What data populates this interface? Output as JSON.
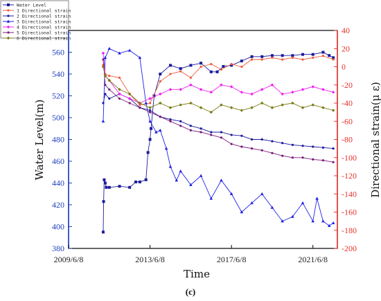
{
  "chart_data": {
    "type": "line",
    "xlabel": "Time",
    "ylabel_left": "Water Level(m)",
    "ylabel_right": "Directional strain(μ ε)",
    "caption": "(c)",
    "x_ticks": [
      "2009/6/8",
      "2013/6/8",
      "2017/6/8",
      "2021/6/8"
    ],
    "x_tick_positions": [
      0,
      4,
      8,
      12
    ],
    "xlim": [
      0,
      13.2
    ],
    "ylim_left": [
      380,
      580
    ],
    "y_ticks_left": [
      "380",
      "400",
      "420",
      "440",
      "460",
      "480",
      "500",
      "520",
      "540",
      "560"
    ],
    "ylim_right": [
      -200,
      40
    ],
    "y_ticks_right": [
      "-200",
      "-180",
      "-160",
      "-140",
      "-120",
      "-100",
      "-80",
      "-60",
      "-40",
      "-20",
      "0",
      "20",
      "40"
    ],
    "grid": false,
    "legend_position": "top-left outside",
    "colors": {
      "left_axis": "#1f3fbf",
      "right_axis": "#e8322c"
    },
    "series": [
      {
        "name": "Water Level",
        "axis": "left",
        "color": "#1a1a9c",
        "marker": "square",
        "x": [
          1.7,
          1.72,
          1.75,
          1.8,
          1.85,
          2.0,
          2.5,
          3.0,
          3.3,
          3.5,
          3.8,
          3.9,
          4.0,
          4.05,
          4.2,
          4.5,
          5.0,
          5.5,
          6.0,
          6.5,
          7.0,
          7.3,
          7.6,
          8.0,
          8.5,
          9.0,
          9.5,
          10.0,
          10.5,
          11.0,
          11.5,
          12.0,
          12.5,
          12.8,
          13.0
        ],
        "y": [
          395,
          423,
          443,
          440,
          436,
          436,
          437,
          436,
          441,
          441,
          443,
          468,
          480,
          490,
          520,
          540,
          548,
          545,
          548,
          550,
          542,
          542,
          547,
          548,
          552,
          556,
          556,
          557,
          557,
          557,
          558,
          558,
          560,
          557,
          555
        ]
      },
      {
        "name": "1 Directional strain",
        "axis": "right",
        "color": "#f05a3c",
        "marker": "dot",
        "x": [
          1.7,
          1.8,
          2.0,
          2.5,
          3.0,
          3.5,
          4.0,
          4.5,
          5.0,
          5.5,
          6.0,
          6.5,
          7.0,
          7.5,
          8.0,
          8.5,
          9.0,
          9.5,
          10.0,
          10.5,
          11.0,
          11.5,
          12.0,
          12.5,
          13.0
        ],
        "y": [
          2,
          -8,
          -10,
          -12,
          -30,
          -42,
          -40,
          -16,
          -8,
          -5,
          -12,
          0,
          3,
          -3,
          3,
          0,
          8,
          8,
          10,
          8,
          10,
          8,
          10,
          12,
          8
        ]
      },
      {
        "name": "2 Directional strain",
        "axis": "right",
        "color": "#1a1a9c",
        "marker": "dot",
        "x": [
          1.7,
          1.8,
          2.0,
          2.5,
          3.0,
          3.5,
          4.0,
          4.5,
          5.0,
          5.5,
          6.0,
          6.5,
          7.0,
          7.5,
          8.0,
          8.5,
          9.0,
          9.5,
          10.0,
          10.5,
          11.0,
          11.5,
          12.0,
          12.5,
          13.0
        ],
        "y": [
          -40,
          -30,
          -35,
          -30,
          -35,
          -45,
          -48,
          -55,
          -58,
          -60,
          -65,
          -68,
          -72,
          -72,
          -75,
          -76,
          -80,
          -80,
          -82,
          -84,
          -86,
          -87,
          -88,
          -89,
          -90
        ]
      },
      {
        "name": "3 Directional strain",
        "axis": "right",
        "color": "#2020e8",
        "marker": "triangle",
        "x": [
          1.7,
          1.8,
          2.0,
          2.5,
          3.0,
          3.5,
          3.8,
          4.0,
          4.3,
          4.5,
          4.8,
          5.0,
          5.3,
          5.5,
          6.0,
          6.5,
          7.0,
          7.5,
          8.0,
          8.5,
          9.0,
          9.5,
          10.0,
          10.5,
          11.0,
          11.5,
          12.0,
          12.2,
          12.5,
          12.8,
          13.0
        ],
        "y": [
          -60,
          10,
          20,
          15,
          18,
          10,
          -40,
          -60,
          -72,
          -70,
          -90,
          -110,
          -125,
          -115,
          -130,
          -120,
          -145,
          -125,
          -140,
          -160,
          -150,
          -140,
          -155,
          -170,
          -165,
          -150,
          -170,
          -145,
          -170,
          -175,
          -172
        ]
      },
      {
        "name": "4 Directional strain",
        "axis": "right",
        "color": "#f022f0",
        "marker": "diamond",
        "x": [
          1.7,
          1.8,
          2.0,
          2.5,
          3.0,
          3.5,
          4.0,
          4.5,
          5.0,
          5.5,
          6.0,
          6.5,
          7.0,
          7.5,
          8.0,
          8.5,
          9.0,
          9.5,
          10.0,
          10.5,
          11.0,
          11.5,
          12.0,
          12.5,
          13.0
        ],
        "y": [
          15,
          -10,
          -15,
          -30,
          -35,
          -40,
          -35,
          -30,
          -25,
          -25,
          -20,
          -25,
          -28,
          -20,
          -22,
          -28,
          -30,
          -25,
          -20,
          -30,
          -28,
          -25,
          -22,
          -25,
          -28
        ]
      },
      {
        "name": "5 Directional strain",
        "axis": "right",
        "color": "#7a1a7a",
        "marker": "dot",
        "x": [
          1.7,
          1.8,
          2.0,
          2.5,
          3.0,
          3.5,
          4.0,
          4.5,
          5.0,
          5.5,
          6.0,
          6.5,
          7.0,
          7.5,
          8.0,
          8.5,
          9.0,
          9.5,
          10.0,
          10.5,
          11.0,
          11.5,
          12.0,
          12.5,
          13.0
        ],
        "y": [
          8,
          -20,
          -25,
          -35,
          -40,
          -45,
          -50,
          -55,
          -60,
          -65,
          -70,
          -72,
          -75,
          -78,
          -85,
          -88,
          -90,
          -92,
          -95,
          -98,
          -100,
          -100,
          -102,
          -103,
          -105
        ]
      },
      {
        "name": "6 Directional strain",
        "axis": "right",
        "color": "#7a7a14",
        "marker": "diamond",
        "x": [
          1.7,
          1.8,
          2.0,
          2.5,
          3.0,
          3.5,
          4.0,
          4.5,
          5.0,
          5.5,
          6.0,
          6.5,
          7.0,
          7.5,
          8.0,
          8.5,
          9.0,
          9.5,
          10.0,
          10.5,
          11.0,
          11.5,
          12.0,
          12.5,
          13.0
        ],
        "y": [
          0,
          -10,
          -15,
          -25,
          -30,
          -40,
          -45,
          -40,
          -45,
          -42,
          -40,
          -45,
          -50,
          -42,
          -45,
          -48,
          -45,
          -40,
          -45,
          -42,
          -40,
          -45,
          -42,
          -45,
          -48
        ]
      }
    ]
  }
}
